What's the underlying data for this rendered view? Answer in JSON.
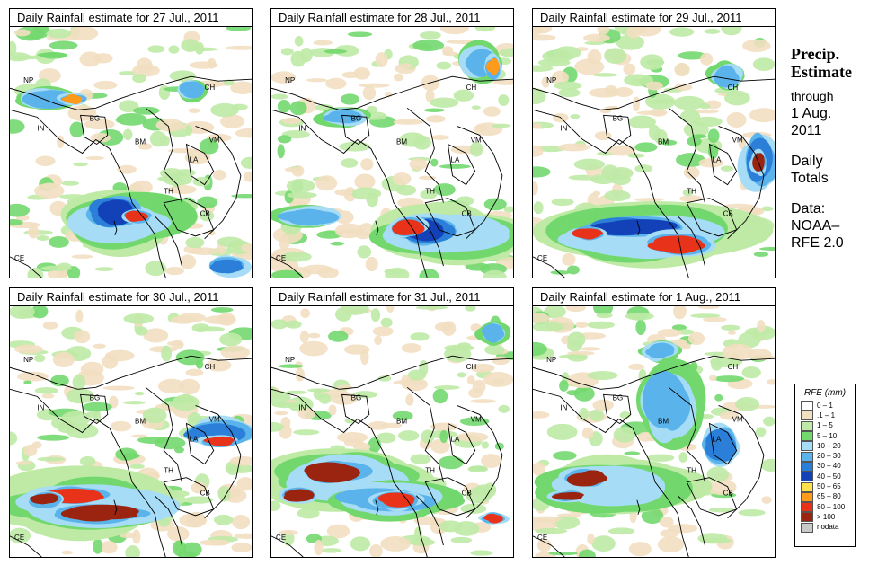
{
  "panels": [
    {
      "title": "Daily Rainfall estimate for  27 Jul., 2011"
    },
    {
      "title": "Daily Rainfall estimate for  28 Jul., 2011"
    },
    {
      "title": "Daily Rainfall estimate for  29 Jul., 2011"
    },
    {
      "title": "Daily Rainfall estimate for  30 Jul., 2011"
    },
    {
      "title": "Daily Rainfall estimate for  31 Jul., 2011"
    },
    {
      "title": "Daily Rainfall estimate for  1 Aug., 2011"
    }
  ],
  "map_labels": {
    "np": "NP",
    "in": "IN",
    "bg": "BG",
    "ch": "CH",
    "bm": "BM",
    "vm": "VM",
    "la": "LA",
    "th": "TH",
    "cb": "CB",
    "ce": "CE"
  },
  "sidebar": {
    "heading_line1": "Precip.",
    "heading_line2": "Estimate",
    "through": "through",
    "date_line1": "1 Aug.",
    "date_line2": "2011",
    "totals_line1": "Daily",
    "totals_line2": "Totals",
    "data_line1": "Data:",
    "data_line2": "NOAA–",
    "data_line3": "RFE 2.0"
  },
  "legend": {
    "title": "RFE (mm)",
    "items": [
      {
        "label": "0 – 1",
        "color": "#ffffff"
      },
      {
        "label": ".1 – 1",
        "color": "#f2dfc1"
      },
      {
        "label": "1 – 5",
        "color": "#bfeaa6"
      },
      {
        "label": "5 – 10",
        "color": "#72d86e"
      },
      {
        "label": "10 – 20",
        "color": "#a6dcf5"
      },
      {
        "label": "20 – 30",
        "color": "#5ab3ea"
      },
      {
        "label": "30 – 40",
        "color": "#2b7fd8"
      },
      {
        "label": "40 – 50",
        "color": "#1241b8"
      },
      {
        "label": "50 – 65",
        "color": "#ffe24a"
      },
      {
        "label": "65 – 80",
        "color": "#ff9a1a"
      },
      {
        "label": "80 – 100",
        "color": "#e8331a"
      },
      {
        "label": "> 100",
        "color": "#9a2410"
      },
      {
        "label": "nodata",
        "color": "#c9c9c9"
      }
    ]
  }
}
